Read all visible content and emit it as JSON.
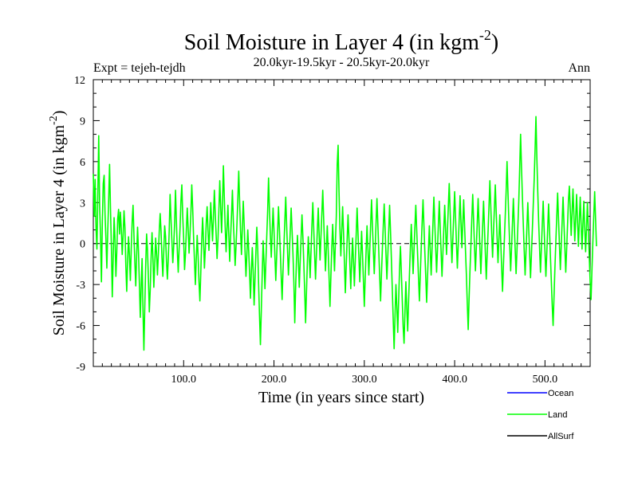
{
  "chart_data": {
    "type": "line",
    "title": "Soil Moisture in Layer 4 (in kgm",
    "title_sup": "-2",
    "title_close": ")",
    "subtitle": "20.0kyr-19.5kyr - 20.5kyr-20.0kyr",
    "expt_label": "Expt = tejeh-tejdh",
    "season_label": "Ann",
    "xlabel": "Time (in years since start)",
    "ylabel": "Soil Moisture in Layer 4 (in kgm",
    "ylabel_sup": "-2",
    "ylabel_close": ")",
    "xlim": [
      0,
      550
    ],
    "ylim": [
      -9,
      12
    ],
    "xticks": [
      100,
      200,
      300,
      400,
      500
    ],
    "xtick_labels": [
      "100.0",
      "200.0",
      "300.0",
      "400.0",
      "500.0"
    ],
    "yticks": [
      -9,
      -6,
      -3,
      0,
      3,
      6,
      9,
      12
    ],
    "ytick_labels": [
      "-9",
      "-6",
      "-3",
      "0",
      "3",
      "6",
      "9",
      "12"
    ],
    "zero_line": true,
    "legend_position": "bottom-right",
    "legend": [
      {
        "name": "Ocean",
        "color": "#0000ff"
      },
      {
        "name": "Land",
        "color": "#00ff00"
      },
      {
        "name": "AllSurf",
        "color": "#000000"
      }
    ],
    "series": [
      {
        "name": "Land",
        "color": "#00ff00",
        "x_start": 0,
        "x_step": 1,
        "values": [
          5.1,
          2.0,
          4.7,
          1.2,
          -0.4,
          3.6,
          7.9,
          2.8,
          0.5,
          -2.8,
          1.6,
          4.4,
          5.0,
          2.1,
          0.3,
          -1.8,
          0.9,
          3.2,
          5.8,
          2.6,
          -0.2,
          -3.9,
          -1.1,
          1.9,
          0.4,
          -2.4,
          -0.6,
          1.8,
          2.5,
          0.7,
          2.3,
          1.1,
          -0.8,
          0.6,
          2.4,
          1.2,
          -1.6,
          -3.5,
          -1.2,
          0.5,
          -0.9,
          -2.7,
          -0.4,
          1.6,
          2.8,
          0.6,
          -1.4,
          -3.1,
          -0.8,
          1.2,
          -0.6,
          -2.9,
          -5.4,
          -3.2,
          -1.1,
          -4.9,
          -7.8,
          -4.6,
          -1.6,
          0.7,
          -0.5,
          -2.6,
          -5.0,
          -3.4,
          -1.0,
          0.8,
          -1.1,
          -3.2,
          -1.5,
          0.4,
          -0.7,
          -2.3,
          -0.8,
          0.9,
          2.2,
          0.9,
          -1.0,
          -2.4,
          -0.6,
          1.3,
          0.5,
          -1.3,
          -2.6,
          -1.1,
          0.9,
          3.6,
          1.8,
          0.2,
          -1.4,
          -0.2,
          1.5,
          3.9,
          1.6,
          -0.5,
          -2.1,
          -0.4,
          1.1,
          3.1,
          4.3,
          2.0,
          0.4,
          -1.9,
          -0.8,
          1.0,
          2.6,
          1.1,
          -0.7,
          0.6,
          2.2,
          4.3,
          2.6,
          0.5,
          -1.3,
          -3.0,
          -1.1,
          0.6,
          -0.9,
          -2.8,
          -4.2,
          -2.1,
          0.2,
          1.9,
          0.3,
          -1.8,
          -0.4,
          1.5,
          2.7,
          0.9,
          -0.5,
          1.2,
          3.0,
          1.6,
          0.2,
          2.0,
          3.9,
          2.2,
          0.6,
          -1.1,
          0.3,
          2.4,
          4.6,
          2.7,
          0.8,
          2.9,
          5.7,
          3.4,
          1.2,
          -0.6,
          1.1,
          2.8,
          0.6,
          -1.3,
          0.5,
          2.1,
          3.9,
          1.7,
          0.1,
          -1.6,
          -0.2,
          1.4,
          3.3,
          5.3,
          3.0,
          0.9,
          -0.8,
          1.2,
          3.1,
          1.4,
          -0.6,
          -2.4,
          -0.8,
          1.0,
          -0.5,
          -2.2,
          -4.0,
          -2.0,
          -0.3,
          -2.1,
          -4.5,
          -2.6,
          -0.6,
          1.2,
          -0.4,
          -3.0,
          -5.3,
          -7.4,
          -4.8,
          -2.2,
          0.2,
          -1.4,
          -3.3,
          -1.4,
          0.5,
          2.4,
          4.8,
          2.5,
          0.6,
          -1.0,
          0.8,
          2.6,
          1.0,
          -0.9,
          -2.7,
          -0.9,
          0.8,
          2.7,
          1.1,
          -0.6,
          -2.4,
          -4.1,
          -2.0,
          -0.2,
          1.6,
          3.4,
          1.4,
          -0.5,
          -2.3,
          -0.8,
          0.9,
          2.6,
          1.0,
          -0.7,
          -2.8,
          -5.8,
          -3.2,
          -1.0,
          0.6,
          -1.2,
          -3.2,
          -1.3,
          0.4,
          2.1,
          0.5,
          -1.4,
          -3.5,
          -5.8,
          -3.5,
          -1.3,
          0.5,
          -0.9,
          -2.5,
          -0.6,
          1.3,
          3.0,
          1.1,
          -0.8,
          -2.6,
          -0.8,
          1.0,
          2.6,
          0.7,
          -1.2,
          0.5,
          2.2,
          3.9,
          1.8,
          -0.1,
          -2.0,
          -0.4,
          1.3,
          -0.5,
          -2.5,
          -4.6,
          -2.4,
          -0.3,
          1.4,
          -0.3,
          -2.0,
          0.1,
          2.0,
          5.8,
          7.2,
          3.8,
          1.1,
          -0.9,
          0.9,
          2.7,
          0.8,
          -1.4,
          -3.6,
          -1.6,
          0.3,
          2.1,
          0.4,
          -1.5,
          -3.3,
          -1.4,
          0.4,
          -1.3,
          -3.1,
          -1.2,
          0.6,
          2.6,
          0.8,
          -1.0,
          -2.8,
          -0.9,
          0.9,
          -0.8,
          -2.7,
          -4.6,
          -2.5,
          -0.5,
          1.3,
          -0.4,
          -2.3,
          -0.5,
          1.4,
          3.2,
          1.3,
          -0.5,
          -2.2,
          -0.4,
          1.5,
          3.3,
          1.4,
          -0.5,
          -2.4,
          -4.2,
          -2.2,
          -0.4,
          1.3,
          2.9,
          1.1,
          -0.8,
          -2.6,
          -0.9,
          0.9,
          2.8,
          0.9,
          -1.2,
          -3.4,
          -5.6,
          -7.7,
          -5.3,
          -3.0,
          -4.6,
          -6.5,
          -4.2,
          -1.9,
          -0.2,
          -2.1,
          -4.1,
          -6.1,
          -7.3,
          -5.0,
          -2.8,
          -4.7,
          -6.4,
          -4.3,
          -2.2,
          -0.3,
          1.4,
          -0.4,
          -2.2,
          -0.5,
          1.2,
          2.8,
          1.0,
          -0.8,
          -2.5,
          -4.2,
          -2.2,
          -0.3,
          1.5,
          3.2,
          1.3,
          -0.6,
          -2.4,
          -4.3,
          -2.4,
          -0.5,
          1.3,
          -0.5,
          -2.3,
          -0.4,
          1.5,
          3.4,
          1.5,
          -0.3,
          -2.1,
          -0.4,
          1.4,
          3.1,
          1.2,
          -0.6,
          -2.4,
          -0.7,
          1.1,
          2.8,
          1.0,
          -0.8,
          0.9,
          2.7,
          4.4,
          2.4,
          0.4,
          -1.4,
          0.3,
          2.1,
          3.8,
          1.9,
          0.0,
          -1.8,
          -0.1,
          1.7,
          3.5,
          1.6,
          -0.3,
          1.4,
          3.2,
          1.3,
          -0.5,
          -2.3,
          -4.4,
          -6.3,
          -4.0,
          -1.9,
          -0.1,
          1.8,
          3.6,
          1.7,
          -0.2,
          -2.0,
          -0.3,
          1.5,
          3.3,
          1.4,
          -0.4,
          -2.2,
          -0.4,
          1.3,
          3.1,
          1.2,
          -0.7,
          -2.6,
          -0.8,
          0.9,
          2.7,
          4.6,
          2.7,
          0.8,
          -1.0,
          0.8,
          2.6,
          4.3,
          2.3,
          0.4,
          -1.4,
          0.3,
          2.1,
          0.2,
          -1.7,
          -3.5,
          -1.6,
          0.2,
          2.0,
          3.8,
          6.0,
          3.8,
          1.7,
          -0.2,
          -2.0,
          -0.3,
          1.5,
          3.3,
          1.4,
          -0.4,
          -2.2,
          -0.5,
          1.3,
          3.1,
          5.5,
          8.0,
          5.6,
          3.4,
          1.4,
          -0.5,
          -2.3,
          -0.6,
          1.2,
          3.0,
          1.1,
          -0.7,
          -2.5,
          -0.8,
          1.0,
          2.8,
          4.6,
          6.8,
          9.3,
          6.3,
          3.8,
          1.6,
          -0.3,
          -2.1,
          -0.4,
          1.4,
          3.1,
          1.2,
          -0.6,
          -2.4,
          -0.7,
          1.1,
          2.9,
          1.0,
          -0.9,
          -2.7,
          -4.5,
          -6.0,
          -3.9,
          -1.8,
          0.1,
          1.9,
          3.7,
          1.8,
          -0.1,
          -1.9,
          -0.2,
          1.6,
          3.4,
          1.5,
          -0.3,
          -2.1,
          -0.4,
          1.4,
          3.2,
          4.2,
          2.5,
          0.6,
          2.3,
          4.0,
          2.1,
          0.2,
          1.9,
          3.6,
          1.7,
          -0.2,
          1.6,
          3.4,
          1.5,
          -0.4,
          1.4,
          3.1,
          1.2,
          -0.6,
          1.2,
          3.0,
          1.0,
          -0.9,
          -2.8,
          -4.1,
          -1.9,
          0.1,
          2.0,
          3.8,
          1.8,
          -0.2
        ]
      }
    ]
  }
}
